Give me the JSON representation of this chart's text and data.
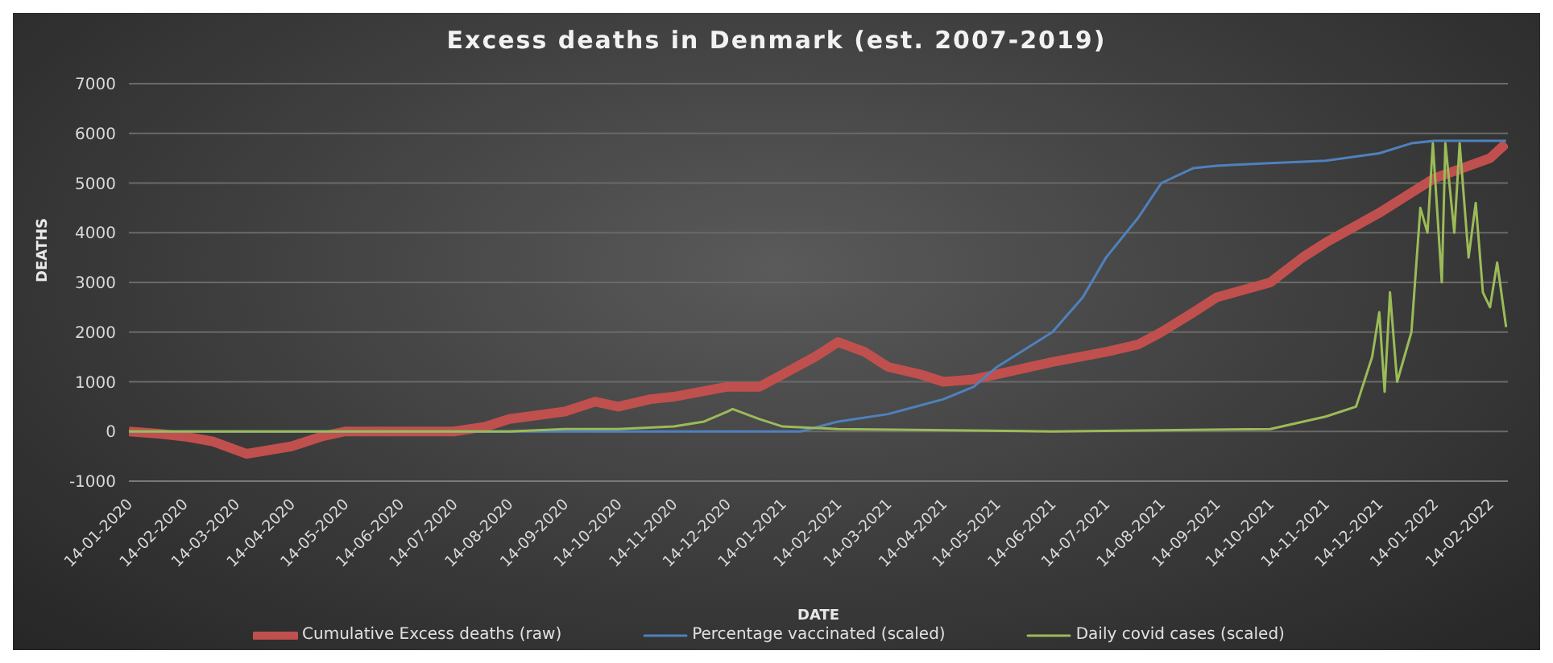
{
  "chart_data": {
    "type": "line",
    "title": "Excess deaths in Denmark (est. 2007-2019)",
    "xlabel": "DATE",
    "ylabel": "DEATHS",
    "xlim": [
      "2020-01-14",
      "2022-02-24"
    ],
    "xticks": [
      {
        "value": "2020-01-14",
        "label": "14-01-2020"
      },
      {
        "value": "2020-02-14",
        "label": "14-02-2020"
      },
      {
        "value": "2020-03-14",
        "label": "14-03-2020"
      },
      {
        "value": "2020-04-14",
        "label": "14-04-2020"
      },
      {
        "value": "2020-05-14",
        "label": "14-05-2020"
      },
      {
        "value": "2020-06-14",
        "label": "14-06-2020"
      },
      {
        "value": "2020-07-14",
        "label": "14-07-2020"
      },
      {
        "value": "2020-08-14",
        "label": "14-08-2020"
      },
      {
        "value": "2020-09-14",
        "label": "14-09-2020"
      },
      {
        "value": "2020-10-14",
        "label": "14-10-2020"
      },
      {
        "value": "2020-11-14",
        "label": "14-11-2020"
      },
      {
        "value": "2020-12-14",
        "label": "14-12-2020"
      },
      {
        "value": "2021-01-14",
        "label": "14-01-2021"
      },
      {
        "value": "2021-02-14",
        "label": "14-02-2021"
      },
      {
        "value": "2021-03-14",
        "label": "14-03-2021"
      },
      {
        "value": "2021-04-14",
        "label": "14-04-2021"
      },
      {
        "value": "2021-05-14",
        "label": "14-05-2021"
      },
      {
        "value": "2021-06-14",
        "label": "14-06-2021"
      },
      {
        "value": "2021-07-14",
        "label": "14-07-2021"
      },
      {
        "value": "2021-08-14",
        "label": "14-08-2021"
      },
      {
        "value": "2021-09-14",
        "label": "14-09-2021"
      },
      {
        "value": "2021-10-14",
        "label": "14-10-2021"
      },
      {
        "value": "2021-11-14",
        "label": "14-11-2021"
      },
      {
        "value": "2021-12-14",
        "label": "14-12-2021"
      },
      {
        "value": "2022-01-14",
        "label": "14-01-2022"
      },
      {
        "value": "2022-02-14",
        "label": "14-02-2022"
      }
    ],
    "ylim": [
      -1000,
      7000
    ],
    "yticks": [
      -1000,
      0,
      1000,
      2000,
      3000,
      4000,
      5000,
      6000,
      7000
    ],
    "grid": "y",
    "legend": "bottom",
    "marker": "none",
    "line_style": "solid",
    "series": [
      {
        "name": "Cumulative Excess deaths (raw)",
        "color": "#c0504d",
        "x": [
          "2020-01-14",
          "2020-02-01",
          "2020-02-14",
          "2020-03-01",
          "2020-03-20",
          "2020-04-14",
          "2020-05-01",
          "2020-05-14",
          "2020-06-14",
          "2020-07-14",
          "2020-08-01",
          "2020-08-14",
          "2020-09-14",
          "2020-10-01",
          "2020-10-14",
          "2020-11-01",
          "2020-11-14",
          "2020-12-14",
          "2021-01-01",
          "2021-01-14",
          "2021-02-01",
          "2021-02-14",
          "2021-03-01",
          "2021-03-14",
          "2021-04-01",
          "2021-04-14",
          "2021-05-01",
          "2021-05-14",
          "2021-06-14",
          "2021-07-14",
          "2021-08-01",
          "2021-08-14",
          "2021-09-01",
          "2021-09-14",
          "2021-10-14",
          "2021-11-01",
          "2021-11-14",
          "2021-12-14",
          "2022-01-14",
          "2022-02-14",
          "2022-02-23"
        ],
        "values": [
          0,
          -50,
          -100,
          -200,
          -450,
          -300,
          -100,
          0,
          0,
          0,
          100,
          250,
          400,
          600,
          500,
          650,
          700,
          900,
          900,
          1150,
          1500,
          1800,
          1600,
          1300,
          1150,
          1000,
          1050,
          1150,
          1400,
          1600,
          1750,
          2000,
          2400,
          2700,
          3000,
          3500,
          3800,
          4400,
          5100,
          5500,
          5800
        ]
      },
      {
        "name": "Percentage vaccinated (scaled)",
        "color": "#4f81bd",
        "x": [
          "2020-01-14",
          "2021-01-24",
          "2021-02-14",
          "2021-03-14",
          "2021-04-14",
          "2021-05-01",
          "2021-05-14",
          "2021-06-14",
          "2021-07-01",
          "2021-07-14",
          "2021-08-01",
          "2021-08-14",
          "2021-09-01",
          "2021-09-14",
          "2021-10-14",
          "2021-11-14",
          "2021-12-14",
          "2022-01-01",
          "2022-01-14",
          "2022-02-23"
        ],
        "values": [
          0,
          0,
          200,
          350,
          650,
          900,
          1300,
          2000,
          2700,
          3500,
          4300,
          5000,
          5300,
          5350,
          5400,
          5450,
          5600,
          5800,
          5850,
          5850
        ]
      },
      {
        "name": "Daily covid cases (scaled)",
        "color": "#9bbb59",
        "x": [
          "2020-01-14",
          "2020-08-14",
          "2020-09-14",
          "2020-10-14",
          "2020-11-14",
          "2020-12-01",
          "2020-12-14",
          "2020-12-17",
          "2021-01-01",
          "2021-01-14",
          "2021-02-14",
          "2021-06-14",
          "2021-10-14",
          "2021-11-14",
          "2021-12-01",
          "2021-12-10",
          "2021-12-14",
          "2021-12-17",
          "2021-12-20",
          "2021-12-24",
          "2022-01-01",
          "2022-01-06",
          "2022-01-10",
          "2022-01-13",
          "2022-01-18",
          "2022-01-20",
          "2022-01-25",
          "2022-01-28",
          "2022-02-02",
          "2022-02-06",
          "2022-02-10",
          "2022-02-14",
          "2022-02-18",
          "2022-02-23"
        ],
        "values": [
          0,
          0,
          50,
          50,
          100,
          200,
          400,
          450,
          250,
          100,
          50,
          0,
          50,
          300,
          500,
          1500,
          2400,
          800,
          2800,
          1000,
          2000,
          4500,
          4000,
          5800,
          3000,
          5800,
          4000,
          5800,
          3500,
          4600,
          2800,
          2500,
          3400,
          2100
        ]
      }
    ]
  }
}
